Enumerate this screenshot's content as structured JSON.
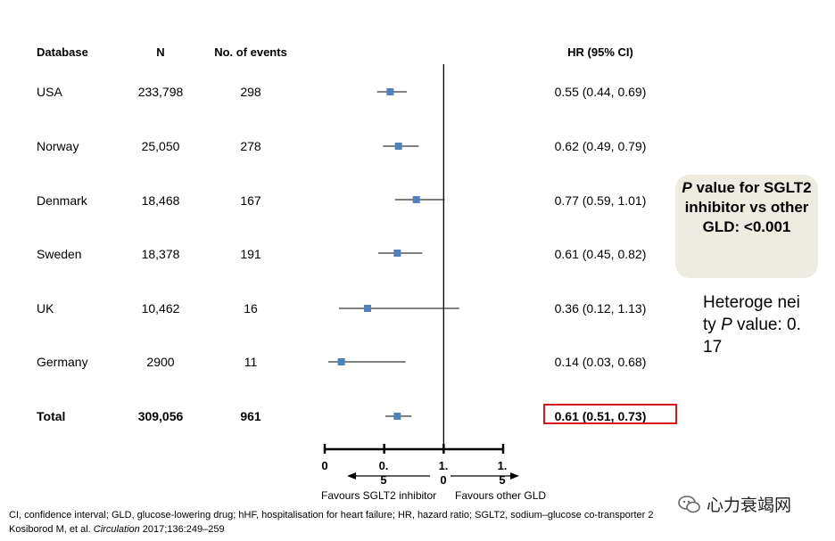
{
  "headers": {
    "database": "Database",
    "n": "N",
    "events": "No. of events",
    "hr": "HR (95% CI)"
  },
  "rows": [
    {
      "database": "USA",
      "n": "233,798",
      "events": "298",
      "hr_ci": "0.55 (0.44, 0.69)"
    },
    {
      "database": "Norway",
      "n": "25,050",
      "events": "278",
      "hr_ci": "0.62 (0.49, 0.79)"
    },
    {
      "database": "Denmark",
      "n": "18,468",
      "events": "167",
      "hr_ci": "0.77 (0.59, 1.01)"
    },
    {
      "database": "Sweden",
      "n": "18,378",
      "events": "191",
      "hr_ci": "0.61 (0.45, 0.82)"
    },
    {
      "database": "UK",
      "n": "10,462",
      "events": "16",
      "hr_ci": "0.36 (0.12, 1.13)"
    },
    {
      "database": "Germany",
      "n": "2900",
      "events": "11",
      "hr_ci": "0.14 (0.03, 0.68)"
    }
  ],
  "total": {
    "database": "Total",
    "n": "309,056",
    "events": "961",
    "hr_ci": "0.61 (0.51, 0.73)"
  },
  "axis": {
    "ticks": [
      {
        "top": "0",
        "bottom": ""
      },
      {
        "top": "0.",
        "bottom": "5"
      },
      {
        "top": "1.",
        "bottom": "0"
      },
      {
        "top": "1.",
        "bottom": "5"
      }
    ],
    "favours_left": "Favours SGLT2 inhibitor",
    "favours_right": "Favours other GLD"
  },
  "pvalue_box": {
    "italic_p": "P",
    "text": " value for SGLT2 inhibitor vs other GLD: <0.001"
  },
  "heterogeneity": {
    "prefix": "Heteroge neity ",
    "italic_p": "P",
    "suffix": " value: 0.17"
  },
  "footnote": {
    "line1": "CI, confidence interval; GLD, glucose-lowering drug; hHF, hospitalisation for heart failure; HR, hazard ratio; SGLT2, sodium–glucose co-transporter 2",
    "line2_prefix": "Kosiborod M, et al. ",
    "journal": "Circulation",
    "line2_suffix": " 2017;136:249–259"
  },
  "watermark": "心力衰竭网",
  "colors": {
    "marker": "#4f81bd",
    "highlight": "#d9141b",
    "box_bg": "#eeece1"
  },
  "chart_data": {
    "type": "forest",
    "title": "HR (95% CI)",
    "xlabel": "",
    "xlim": [
      0,
      1.5
    ],
    "reference_line": 1.0,
    "categories": [
      "USA",
      "Norway",
      "Denmark",
      "Sweden",
      "UK",
      "Germany",
      "Total"
    ],
    "hr": [
      0.55,
      0.62,
      0.77,
      0.61,
      0.36,
      0.14,
      0.61
    ],
    "lower": [
      0.44,
      0.49,
      0.59,
      0.45,
      0.12,
      0.03,
      0.51
    ],
    "upper": [
      0.69,
      0.79,
      1.01,
      0.82,
      1.13,
      0.68,
      0.73
    ]
  }
}
